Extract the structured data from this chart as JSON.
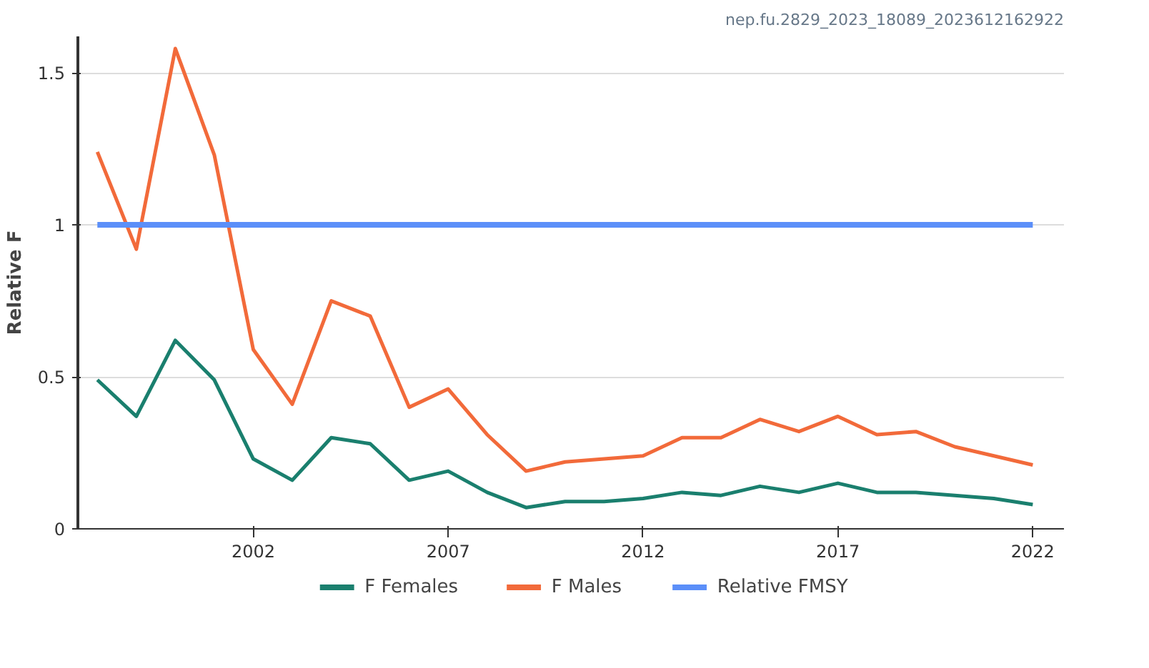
{
  "chart_data": {
    "type": "line",
    "ylabel": "Relative F",
    "annotations": [
      "nep.fu.2829_2023_18089_2023612162922"
    ],
    "x": [
      1998,
      1999,
      2000,
      2001,
      2002,
      2003,
      2004,
      2005,
      2006,
      2007,
      2008,
      2009,
      2010,
      2011,
      2012,
      2013,
      2014,
      2015,
      2016,
      2017,
      2018,
      2019,
      2020,
      2021,
      2022
    ],
    "series": [
      {
        "name": "F Females",
        "color": "#1a7f6e",
        "values": [
          0.49,
          0.37,
          0.62,
          0.49,
          0.23,
          0.16,
          0.3,
          0.28,
          0.16,
          0.19,
          0.12,
          0.07,
          0.09,
          0.09,
          0.1,
          0.12,
          0.11,
          0.14,
          0.12,
          0.15,
          0.12,
          0.12,
          0.11,
          0.1,
          0.08
        ]
      },
      {
        "name": "F Males",
        "color": "#f26a3a",
        "values": [
          1.24,
          0.92,
          1.58,
          1.23,
          0.59,
          0.41,
          0.75,
          0.7,
          0.4,
          0.46,
          0.31,
          0.19,
          0.22,
          0.23,
          0.24,
          0.3,
          0.3,
          0.36,
          0.32,
          0.37,
          0.31,
          0.32,
          0.27,
          0.24,
          0.21
        ]
      },
      {
        "name": "Relative FMSY",
        "color": "#5b8ff9",
        "values": [
          1,
          1,
          1,
          1,
          1,
          1,
          1,
          1,
          1,
          1,
          1,
          1,
          1,
          1,
          1,
          1,
          1,
          1,
          1,
          1,
          1,
          1,
          1,
          1,
          1
        ]
      }
    ],
    "xlim": [
      1997.5,
      2022.8
    ],
    "xticks": [
      2002,
      2007,
      2012,
      2017,
      2022
    ],
    "ylim": [
      0,
      1.62
    ],
    "yticks": [
      0,
      0.5,
      1,
      1.5
    ],
    "grid": "y",
    "legend": "bottom"
  }
}
